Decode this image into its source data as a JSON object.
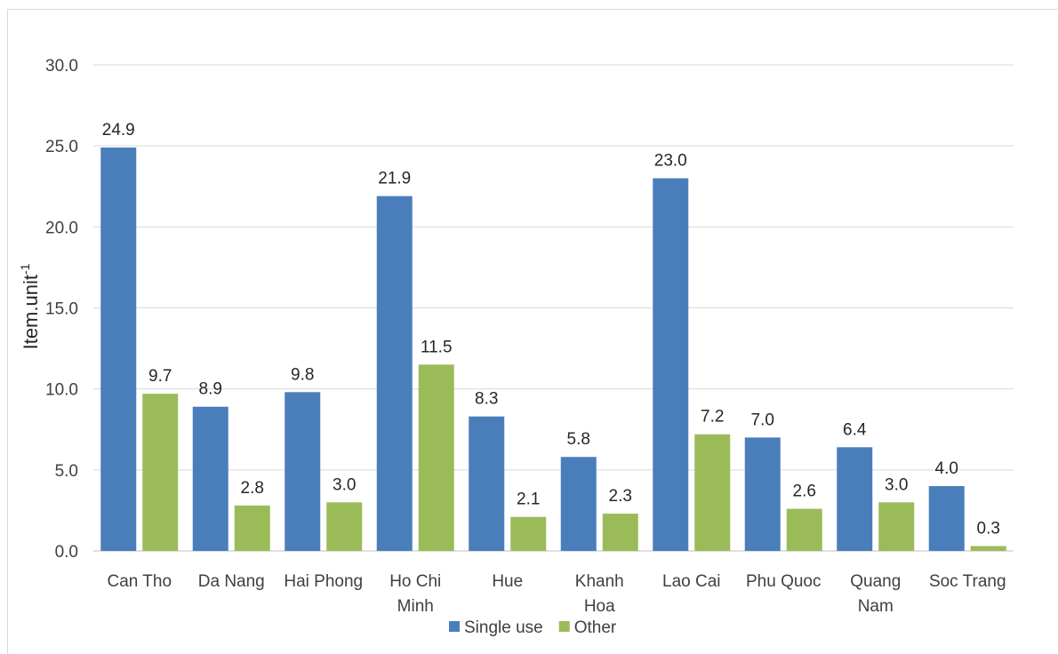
{
  "chart_data": {
    "type": "bar",
    "title": "",
    "xlabel": "",
    "ylabel": "Item.unit",
    "ylabel_superscript": "-1",
    "ylim": [
      0,
      30
    ],
    "yticks": [
      "0.0",
      "5.0",
      "10.0",
      "15.0",
      "20.0",
      "25.0",
      "30.0"
    ],
    "grid": true,
    "legend_position": "bottom",
    "categories": [
      [
        "Can Tho"
      ],
      [
        "Da Nang"
      ],
      [
        "Hai Phong"
      ],
      [
        "Ho Chi",
        "Minh"
      ],
      [
        "Hue"
      ],
      [
        "Khanh",
        "Hoa"
      ],
      [
        "Lao Cai"
      ],
      [
        "Phu Quoc"
      ],
      [
        "Quang",
        "Nam"
      ],
      [
        "Soc Trang"
      ]
    ],
    "series": [
      {
        "name": "Single use",
        "color": "#4a7ebb",
        "values": [
          24.9,
          8.9,
          9.8,
          21.9,
          8.3,
          5.8,
          23.0,
          7.0,
          6.4,
          4.0
        ],
        "labels": [
          "24.9",
          "8.9",
          "9.8",
          "21.9",
          "8.3",
          "5.8",
          "23.0",
          "7.0",
          "6.4",
          "4.0"
        ]
      },
      {
        "name": "Other",
        "color": "#9bbb59",
        "values": [
          9.7,
          2.8,
          3.0,
          11.5,
          2.1,
          2.3,
          7.2,
          2.6,
          3.0,
          0.3
        ],
        "labels": [
          "9.7",
          "2.8",
          "3.0",
          "11.5",
          "2.1",
          "2.3",
          "7.2",
          "2.6",
          "3.0",
          "0.3"
        ]
      }
    ]
  }
}
